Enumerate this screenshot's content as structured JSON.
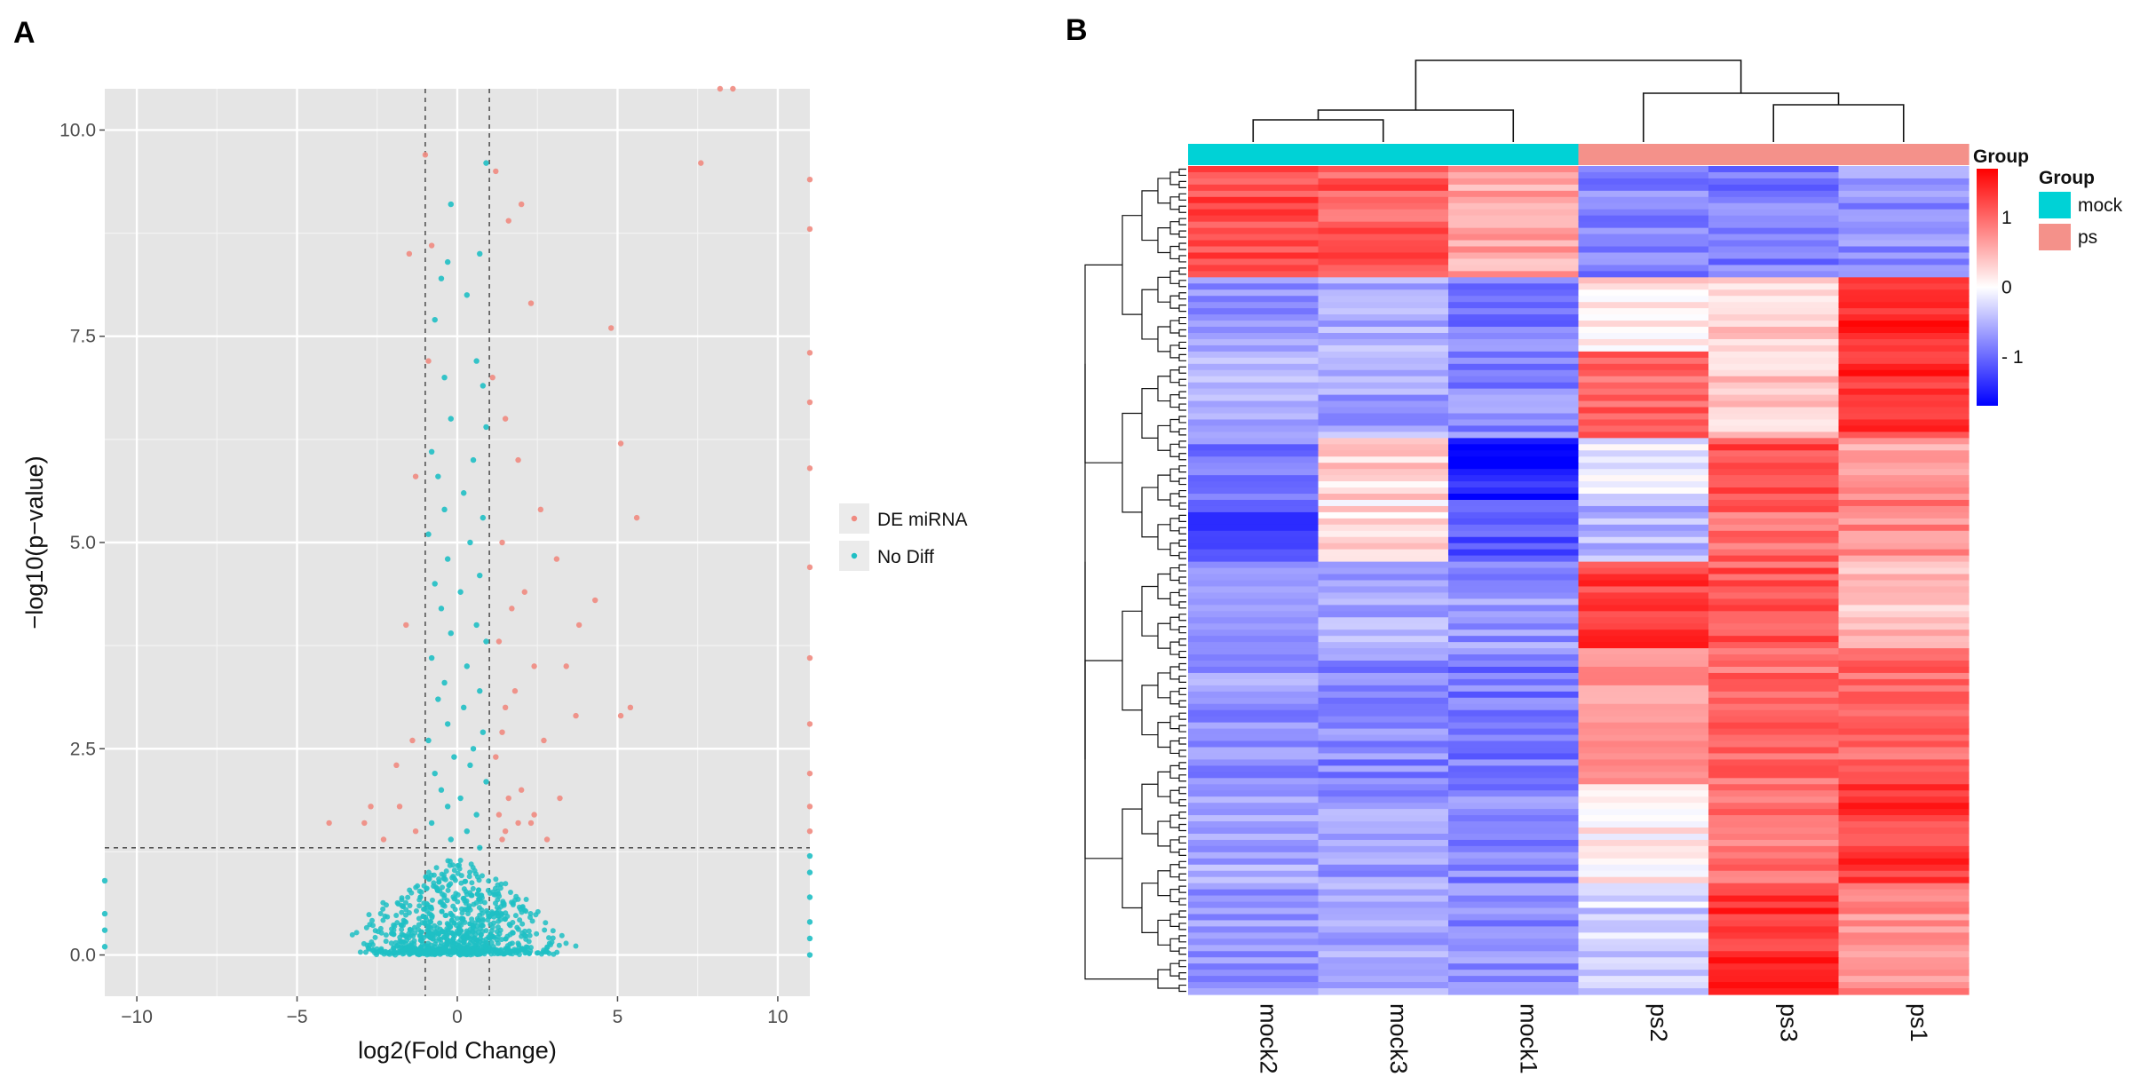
{
  "panels": {
    "left_label": "A",
    "right_label": "B"
  },
  "chart_data": [
    {
      "type": "scatter",
      "panel": "A",
      "title": "",
      "xlabel": "log2(Fold Change)",
      "ylabel": "−log10(p−value)",
      "xlim": [
        -11,
        11
      ],
      "ylim": [
        -0.5,
        10.5
      ],
      "x_ticks": [
        -10,
        -5,
        0,
        5,
        10
      ],
      "x_tick_labels": [
        "−10",
        "−5",
        "0",
        "5",
        "10"
      ],
      "y_ticks": [
        0.0,
        2.5,
        5.0,
        7.5,
        10.0
      ],
      "y_tick_labels": [
        "0.0",
        "2.5",
        "5.0",
        "7.5",
        "10.0"
      ],
      "thresholds": {
        "vertical_lines": [
          -1,
          1
        ],
        "horizontal_line": 1.3
      },
      "legend_position": "right",
      "colors": {
        "background": "#e5e5e5",
        "grid": "#ffffff",
        "de": "#f08a80",
        "nodiff": "#1fbfc4"
      },
      "series": [
        {
          "name": "DE miRNA",
          "color": "#f08a80",
          "points": [
            [
              8.2,
              10.5
            ],
            [
              8.6,
              10.5
            ],
            [
              -1.0,
              9.7
            ],
            [
              1.2,
              9.5
            ],
            [
              7.6,
              9.6
            ],
            [
              11,
              9.4
            ],
            [
              2.0,
              9.1
            ],
            [
              1.6,
              8.9
            ],
            [
              11,
              8.8
            ],
            [
              -0.8,
              8.6
            ],
            [
              -1.5,
              8.5
            ],
            [
              2.3,
              7.9
            ],
            [
              4.8,
              7.6
            ],
            [
              11,
              7.3
            ],
            [
              -0.9,
              7.2
            ],
            [
              1.1,
              7.0
            ],
            [
              11,
              6.7
            ],
            [
              1.5,
              6.5
            ],
            [
              5.1,
              6.2
            ],
            [
              1.9,
              6.0
            ],
            [
              -1.3,
              5.8
            ],
            [
              11,
              5.9
            ],
            [
              2.6,
              5.4
            ],
            [
              5.6,
              5.3
            ],
            [
              1.4,
              5.0
            ],
            [
              3.1,
              4.8
            ],
            [
              11,
              4.7
            ],
            [
              2.1,
              4.4
            ],
            [
              4.3,
              4.3
            ],
            [
              1.7,
              4.2
            ],
            [
              -1.6,
              4.0
            ],
            [
              3.8,
              4.0
            ],
            [
              1.3,
              3.8
            ],
            [
              11,
              3.6
            ],
            [
              2.4,
              3.5
            ],
            [
              3.4,
              3.5
            ],
            [
              1.8,
              3.2
            ],
            [
              5.4,
              3.0
            ],
            [
              1.5,
              3.0
            ],
            [
              5.1,
              2.9
            ],
            [
              11,
              2.8
            ],
            [
              3.7,
              2.9
            ],
            [
              1.4,
              2.7
            ],
            [
              -1.4,
              2.6
            ],
            [
              2.7,
              2.6
            ],
            [
              1.2,
              2.4
            ],
            [
              -1.9,
              2.3
            ],
            [
              11,
              2.2
            ],
            [
              2.0,
              2.0
            ],
            [
              1.6,
              1.9
            ],
            [
              3.2,
              1.9
            ],
            [
              -1.8,
              1.8
            ],
            [
              -2.7,
              1.8
            ],
            [
              1.3,
              1.7
            ],
            [
              2.3,
              1.6
            ],
            [
              1.9,
              1.6
            ],
            [
              2.4,
              1.7
            ],
            [
              11,
              1.5
            ],
            [
              -2.9,
              1.6
            ],
            [
              -1.3,
              1.5
            ],
            [
              1.5,
              1.5
            ],
            [
              2.8,
              1.4
            ],
            [
              1.4,
              1.4
            ],
            [
              -4.0,
              1.6
            ],
            [
              -2.3,
              1.4
            ],
            [
              11,
              1.8
            ]
          ]
        },
        {
          "name": "No Diff",
          "color": "#1fbfc4",
          "points": [
            [
              -0.2,
              9.1
            ],
            [
              0.9,
              9.6
            ],
            [
              -0.3,
              8.4
            ],
            [
              0.7,
              8.5
            ],
            [
              -0.5,
              8.2
            ],
            [
              0.3,
              8.0
            ],
            [
              -0.7,
              7.7
            ],
            [
              0.6,
              7.2
            ],
            [
              -0.4,
              7.0
            ],
            [
              0.8,
              6.9
            ],
            [
              -0.2,
              6.5
            ],
            [
              0.9,
              6.4
            ],
            [
              -0.8,
              6.1
            ],
            [
              0.5,
              6.0
            ],
            [
              -0.6,
              5.8
            ],
            [
              0.2,
              5.6
            ],
            [
              -0.4,
              5.4
            ],
            [
              0.8,
              5.3
            ],
            [
              -0.9,
              5.1
            ],
            [
              0.4,
              5.0
            ],
            [
              -0.3,
              4.8
            ],
            [
              0.7,
              4.6
            ],
            [
              -0.7,
              4.5
            ],
            [
              0.1,
              4.4
            ],
            [
              -0.5,
              4.2
            ],
            [
              0.6,
              4.0
            ],
            [
              -0.2,
              3.9
            ],
            [
              0.9,
              3.8
            ],
            [
              -0.8,
              3.6
            ],
            [
              0.3,
              3.5
            ],
            [
              -0.4,
              3.3
            ],
            [
              0.7,
              3.2
            ],
            [
              -0.6,
              3.1
            ],
            [
              0.2,
              3.0
            ],
            [
              -0.3,
              2.8
            ],
            [
              0.8,
              2.7
            ],
            [
              -0.9,
              2.6
            ],
            [
              0.5,
              2.5
            ],
            [
              -0.1,
              2.4
            ],
            [
              0.4,
              2.3
            ],
            [
              -0.7,
              2.2
            ],
            [
              0.9,
              2.1
            ],
            [
              -0.5,
              2.0
            ],
            [
              0.1,
              1.9
            ],
            [
              -0.3,
              1.8
            ],
            [
              0.6,
              1.7
            ],
            [
              -0.8,
              1.6
            ],
            [
              0.3,
              1.5
            ],
            [
              -0.2,
              1.4
            ],
            [
              0.7,
              1.3
            ],
            [
              -11,
              0.9
            ],
            [
              -11,
              0.5
            ],
            [
              -11,
              0.3
            ],
            [
              -11,
              0.1
            ],
            [
              11,
              1.2
            ],
            [
              11,
              1.0
            ],
            [
              11,
              0.7
            ],
            [
              11,
              0.4
            ],
            [
              11,
              0.2
            ],
            [
              11,
              0.0
            ]
          ]
        }
      ]
    },
    {
      "type": "heatmap",
      "panel": "B",
      "title": "",
      "columns": [
        "mock2",
        "mock3",
        "mock1",
        "ps2",
        "ps3",
        "ps1"
      ],
      "column_groups": [
        "mock",
        "mock",
        "mock",
        "ps",
        "ps",
        "ps"
      ],
      "group_annotation": {
        "title": "Group",
        "levels": [
          "mock",
          "ps"
        ],
        "colors": [
          "#00d2d6",
          "#f4918a"
        ]
      },
      "colorbar": {
        "title": "Group",
        "ticks": [
          1,
          0,
          -1
        ],
        "tick_labels": [
          "1",
          "0",
          "- 1"
        ],
        "range": [
          -1.7,
          1.7
        ],
        "colors": [
          "#0000ff",
          "#ffffff",
          "#ff0000"
        ]
      },
      "column_dendrogram": true,
      "row_dendrogram": true,
      "row_blocks": [
        {
          "rows": 18,
          "values": [
            1.2,
            1.1,
            0.6,
            -0.8,
            -0.9,
            -0.7
          ]
        },
        {
          "rows": 12,
          "values": [
            -0.7,
            -0.5,
            -0.9,
            0.2,
            0.3,
            1.5
          ]
        },
        {
          "rows": 14,
          "values": [
            -0.6,
            -0.6,
            -0.8,
            1.0,
            0.4,
            1.4
          ]
        },
        {
          "rows": 10,
          "values": [
            -0.9,
            0.3,
            -1.5,
            -0.2,
            1.2,
            0.6
          ]
        },
        {
          "rows": 10,
          "values": [
            -1.2,
            0.2,
            -1.1,
            -0.5,
            1.0,
            0.8
          ]
        },
        {
          "rows": 14,
          "values": [
            -0.8,
            -0.6,
            -0.7,
            1.3,
            1.1,
            0.4
          ]
        },
        {
          "rows": 22,
          "values": [
            -0.7,
            -0.8,
            -0.9,
            0.7,
            1.0,
            1.0
          ]
        },
        {
          "rows": 16,
          "values": [
            -0.6,
            -0.7,
            -0.8,
            0.1,
            0.9,
            1.3
          ]
        },
        {
          "rows": 18,
          "values": [
            -0.7,
            -0.6,
            -0.8,
            -0.3,
            1.4,
            0.7
          ]
        }
      ]
    }
  ]
}
